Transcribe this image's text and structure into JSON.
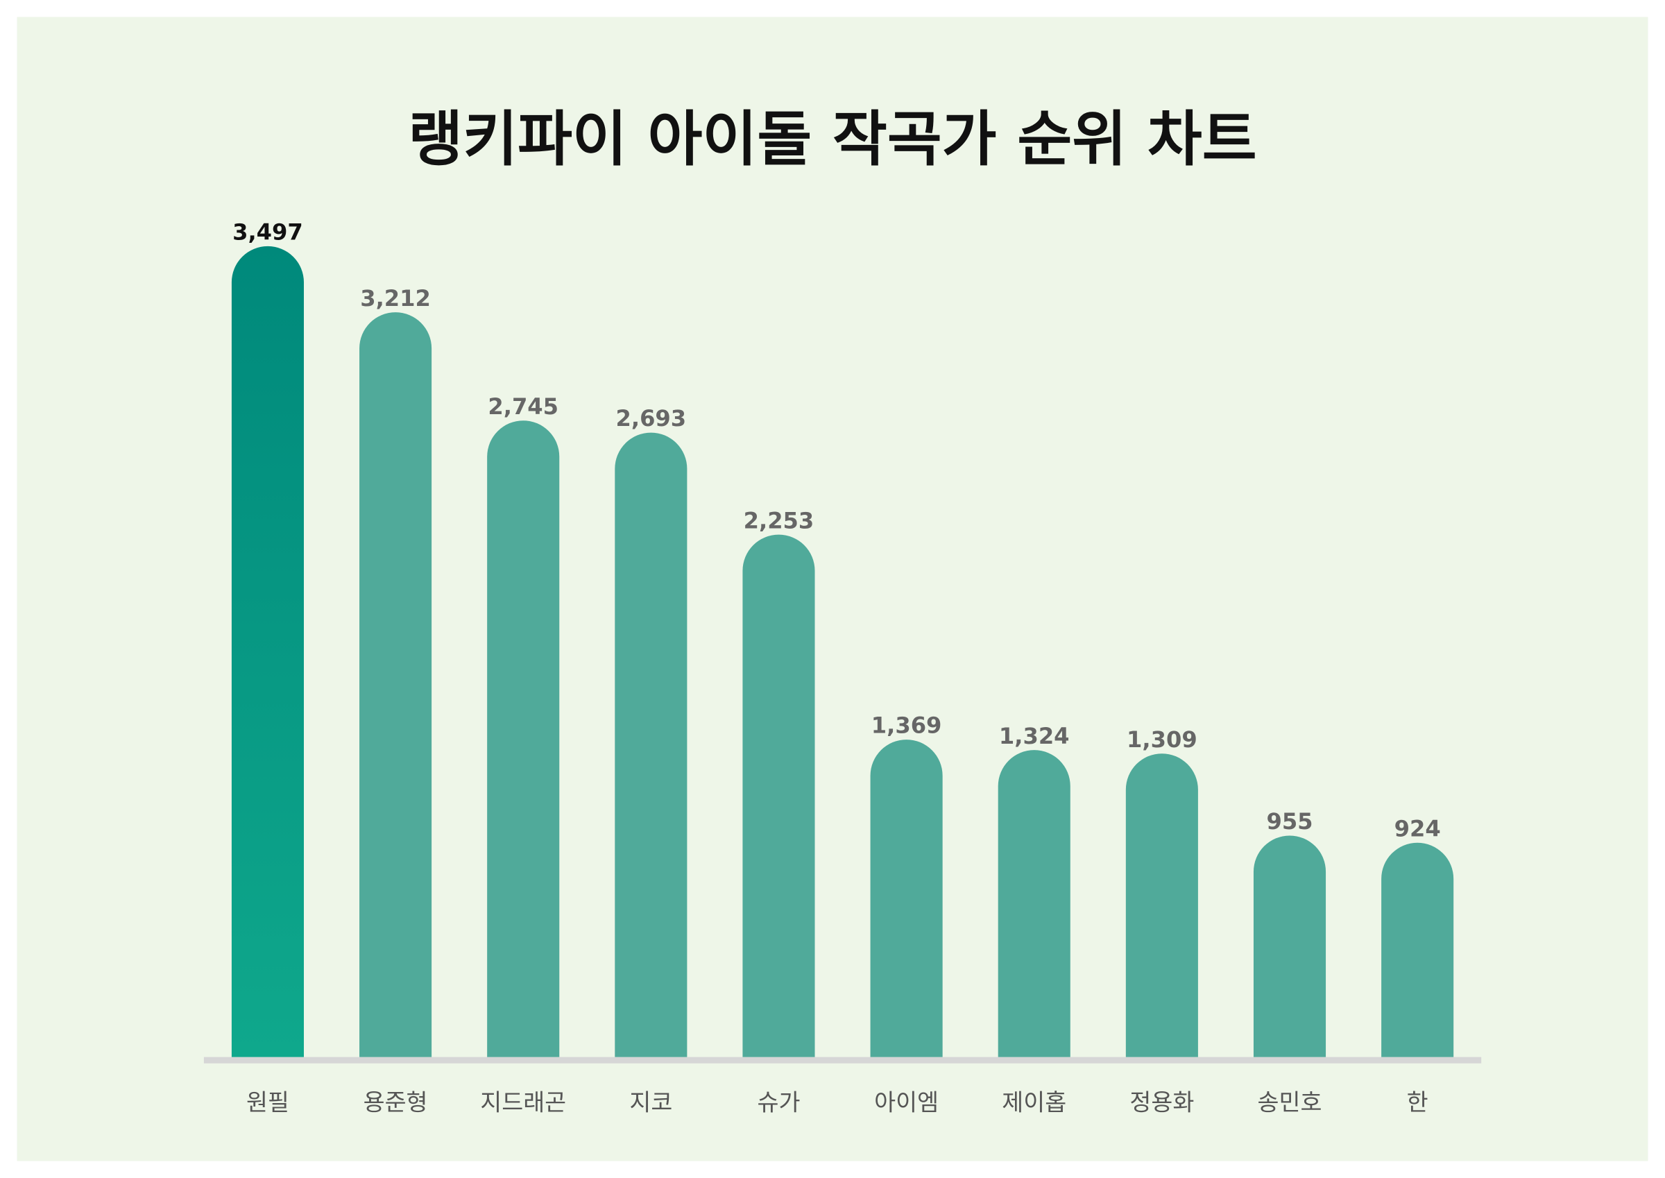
{
  "chart_data": {
    "type": "bar",
    "title": "랭키파이 아이돌 작곡가 순위 차트",
    "categories": [
      "원필",
      "용준형",
      "지드래곤",
      "지코",
      "슈가",
      "아이엠",
      "제이홉",
      "정용화",
      "송민호",
      "한"
    ],
    "values": [
      3497,
      3212,
      2745,
      2693,
      2253,
      1369,
      1324,
      1309,
      955,
      924
    ],
    "value_labels": [
      "3,497",
      "3,212",
      "2,745",
      "2,693",
      "2,253",
      "1,369",
      "1,324",
      "1,309",
      "955",
      "924"
    ],
    "color": "#50aa9a"
  }
}
